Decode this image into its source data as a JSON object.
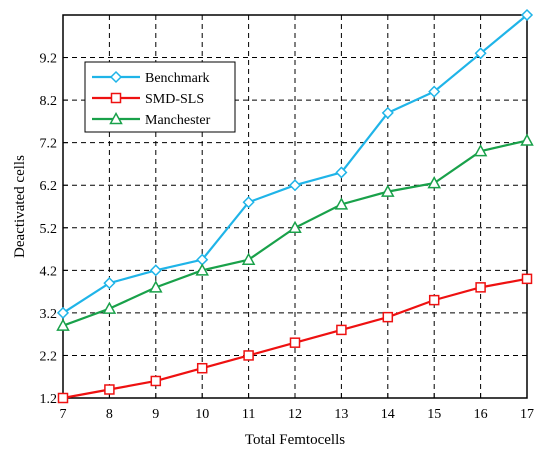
{
  "chart_data": {
    "type": "line",
    "title": "",
    "xlabel": "Total Femtocells",
    "ylabel": "Deactivated cells",
    "x": [
      7,
      8,
      9,
      10,
      11,
      12,
      13,
      14,
      15,
      16,
      17
    ],
    "xlim": [
      7,
      17
    ],
    "ylim": [
      1.2,
      10.2
    ],
    "xticks": [
      "7",
      "8",
      "9",
      "10",
      "11",
      "12",
      "13",
      "14",
      "15",
      "16",
      "17"
    ],
    "yticks": [
      "1.2",
      "2.2",
      "3.2",
      "4.2",
      "5.2",
      "6.2",
      "7.2",
      "8.2",
      "9.2"
    ],
    "ytick_values": [
      1.2,
      2.2,
      3.2,
      4.2,
      5.2,
      6.2,
      7.2,
      8.2,
      9.2
    ],
    "grid": true,
    "legend_position": "top-left",
    "series": [
      {
        "name": "Benchmark",
        "color": "#1fb4e8",
        "marker": "diamond-icon",
        "values": [
          3.2,
          3.9,
          4.2,
          4.45,
          5.8,
          6.2,
          6.5,
          7.9,
          8.4,
          9.3,
          10.2
        ]
      },
      {
        "name": "SMD-SLS",
        "color": "#ee1111",
        "marker": "square-icon",
        "values": [
          1.2,
          1.4,
          1.6,
          1.9,
          2.2,
          2.5,
          2.8,
          3.1,
          3.5,
          3.8,
          4.0
        ]
      },
      {
        "name": "Manchester",
        "color": "#19a14a",
        "marker": "triangle-icon",
        "values": [
          2.9,
          3.3,
          3.8,
          4.2,
          4.45,
          5.2,
          5.75,
          6.05,
          6.25,
          7.0,
          7.25
        ]
      }
    ]
  }
}
